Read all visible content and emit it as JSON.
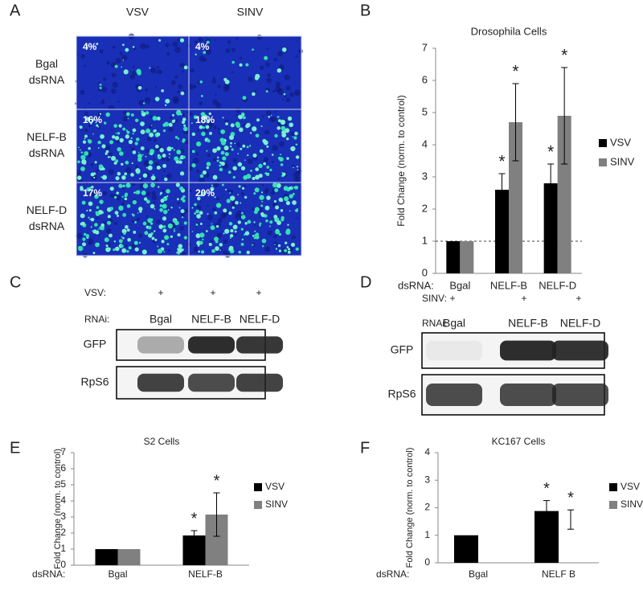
{
  "panel_labels": [
    "A",
    "B",
    "C",
    "D",
    "E",
    "F"
  ],
  "panel_a": {
    "columns": [
      "VSV",
      "SINV"
    ],
    "rows": [
      [
        "Bgal",
        "dsRNA"
      ],
      [
        "NELF-B",
        "dsRNA"
      ],
      [
        "NELF-D",
        "dsRNA"
      ]
    ],
    "percentages": [
      [
        "4%",
        "4%"
      ],
      [
        "16%",
        "18%"
      ],
      [
        "17%",
        "20%"
      ]
    ]
  },
  "panel_c": {
    "virus_label": "VSV:",
    "virus": [
      "+",
      "+",
      "+"
    ],
    "rnai_label": "RNAi:",
    "lanes": [
      "Bgal",
      "NELF-B",
      "NELF-D"
    ],
    "blots": [
      "GFP",
      "RpS6"
    ]
  },
  "panel_d": {
    "virus_label": "SINV:",
    "virus": [
      "+",
      "+",
      "+"
    ],
    "rnai_label": "RNAi:",
    "lanes": [
      "Bgal",
      "NELF-B",
      "NELF-D"
    ],
    "blots": [
      "GFP",
      "RpS6"
    ]
  },
  "chart_data": [
    {
      "type": "bar",
      "title": "Drosophila Cells",
      "ylabel": "Fold Change (norm. to control)",
      "xlabel_prefix": "dsRNA:",
      "categories": [
        "Bgal",
        "NELF-B",
        "NELF-D"
      ],
      "series": [
        {
          "name": "VSV",
          "color": "#000000",
          "values": [
            1,
            2.6,
            2.8
          ],
          "errors": [
            0,
            0.5,
            0.6
          ],
          "significance": [
            null,
            "*",
            "*"
          ]
        },
        {
          "name": "SINV",
          "color": "#808080",
          "values": [
            1,
            4.7,
            4.9
          ],
          "errors": [
            0,
            1.2,
            1.5
          ],
          "significance": [
            null,
            "*",
            "*"
          ]
        }
      ],
      "ylim": [
        0,
        7
      ],
      "yticks": [
        0,
        1,
        2,
        3,
        4,
        5,
        6,
        7
      ],
      "reference_line": 1
    },
    {
      "type": "bar",
      "title": "S2 Cells",
      "ylabel": "Fold Change (norm. to control)",
      "xlabel_prefix": "dsRNA:",
      "categories": [
        "Bgal",
        "NELF-B"
      ],
      "series": [
        {
          "name": "VSV",
          "color": "#000000",
          "values": [
            1,
            1.85
          ],
          "errors": [
            0,
            0.3
          ],
          "significance": [
            null,
            "*"
          ]
        },
        {
          "name": "SINV",
          "color": "#808080",
          "values": [
            1,
            3.15
          ],
          "errors": [
            0,
            1.35
          ],
          "significance": [
            null,
            "*"
          ]
        }
      ],
      "ylim": [
        0,
        7
      ],
      "yticks": [
        0,
        1,
        2,
        3,
        4,
        5,
        6,
        7
      ]
    },
    {
      "type": "bar",
      "title": "KC167 Cells",
      "ylabel": "Fold Change (norm. to control)",
      "xlabel_prefix": "dsRNA:",
      "categories": [
        "Bgal",
        "NELF B"
      ],
      "series": [
        {
          "name": "VSV",
          "color": "#000000",
          "values": [
            1,
            1.88
          ],
          "errors": [
            0,
            0.38
          ],
          "significance": [
            null,
            "*"
          ]
        },
        {
          "name": "SINV",
          "color": "#808080",
          "values": [
            null,
            1.57
          ],
          "errors": [
            null,
            0.35
          ],
          "significance": [
            null,
            "*"
          ],
          "show_bars": false
        }
      ],
      "ylim": [
        0,
        4
      ],
      "yticks": [
        0,
        1,
        2,
        3,
        4
      ]
    }
  ]
}
